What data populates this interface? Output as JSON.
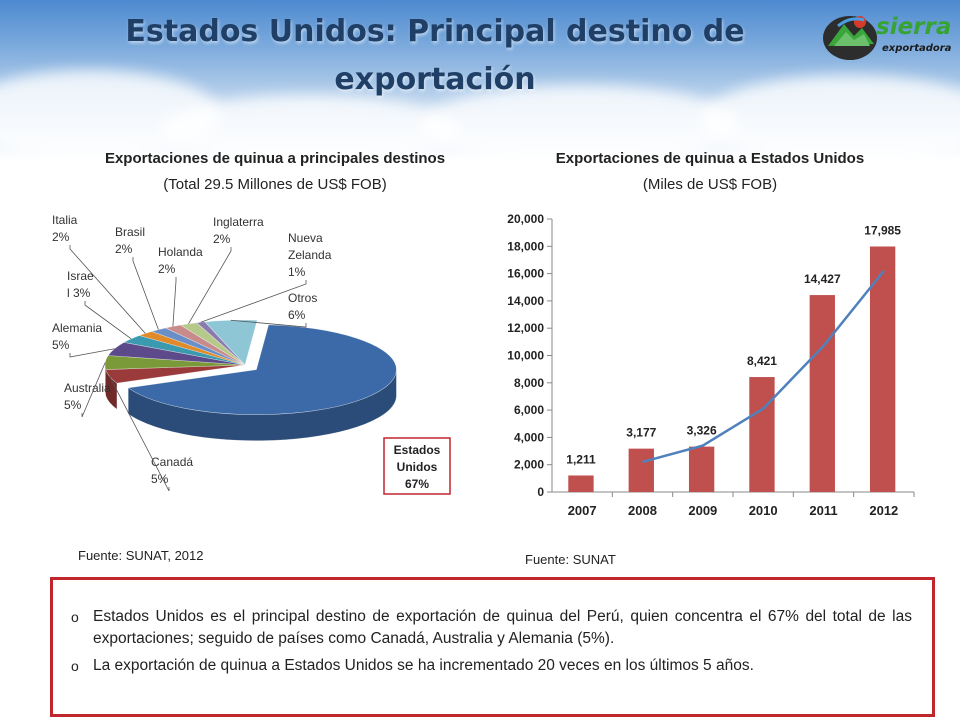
{
  "slide": {
    "title": "Estados Unidos: Principal destino de exportación",
    "logo": {
      "name": "sierra",
      "tagline": "exportadora"
    }
  },
  "left": {
    "title": "Exportaciones de quinua a principales destinos",
    "subtitle": "(Total 29.5 Millones de US$ FOB)",
    "source": "Fuente: SUNAT, 2012"
  },
  "right": {
    "title": "Exportaciones de quinua a Estados Unidos",
    "subtitle": "(Miles de US$ FOB)",
    "source": "Fuente: SUNAT"
  },
  "notes": [
    "Estados Unidos es el principal destino de exportación de quinua del Perú, quien concentra el 67% del total de las exportaciones; seguido de países como Canadá, Australia y Alemania (5%).",
    "La exportación de quinua a Estados Unidos se ha incrementado 20 veces en los últimos 5 años."
  ],
  "chart_data": [
    {
      "type": "pie",
      "title": "Exportaciones de quinua a principales destinos",
      "subtitle": "(Total 29.5 Millones de US$ FOB)",
      "slices": [
        {
          "label": "Estados Unidos",
          "value": 67,
          "value_label": "67%",
          "color": "#3c6aa8"
        },
        {
          "label": "Canadá",
          "value": 5,
          "value_label": "5%",
          "color": "#9b3a3a"
        },
        {
          "label": "Australia",
          "value": 5,
          "value_label": "5%",
          "color": "#7a9a3a"
        },
        {
          "label": "Alemania",
          "value": 5,
          "value_label": "5%",
          "color": "#5d4a8a"
        },
        {
          "label": "Israel",
          "value": 3,
          "value_label": "3%",
          "color": "#3b9ab0"
        },
        {
          "label": "Italia",
          "value": 2,
          "value_label": "2%",
          "color": "#e08a2a"
        },
        {
          "label": "Brasil",
          "value": 2,
          "value_label": "2%",
          "color": "#6a8fc8"
        },
        {
          "label": "Holanda",
          "value": 2,
          "value_label": "2%",
          "color": "#c88a8a"
        },
        {
          "label": "Inglaterra",
          "value": 2,
          "value_label": "2%",
          "color": "#b5c98a"
        },
        {
          "label": "Nueva Zelanda",
          "value": 1,
          "value_label": "1%",
          "color": "#8a7ab0"
        },
        {
          "label": "Otros",
          "value": 6,
          "value_label": "6%",
          "color": "#8ec6d6"
        }
      ],
      "highlight": "Estados Unidos"
    },
    {
      "type": "bar",
      "title": "Exportaciones de quinua a Estados Unidos",
      "subtitle": "(Miles de US$ FOB)",
      "categories": [
        "2007",
        "2008",
        "2009",
        "2010",
        "2011",
        "2012"
      ],
      "values": [
        1211,
        3177,
        3326,
        8421,
        14427,
        17985
      ],
      "value_labels": [
        "1,211",
        "3,177",
        "3,326",
        "8,421",
        "14,427",
        "17,985"
      ],
      "bar_color": "#c0504d",
      "ylim": [
        0,
        20000
      ],
      "yticks": [
        0,
        2000,
        4000,
        6000,
        8000,
        10000,
        12000,
        14000,
        16000,
        18000,
        20000
      ],
      "ytick_labels": [
        "0",
        "2,000",
        "4,000",
        "6,000",
        "8,000",
        "10,000",
        "12,000",
        "14,000",
        "16,000",
        "18,000",
        "20,000"
      ],
      "trend_line": {
        "color": "#4f81bd",
        "values": [
          2200,
          3400,
          6100,
          10700,
          16200
        ]
      }
    }
  ]
}
